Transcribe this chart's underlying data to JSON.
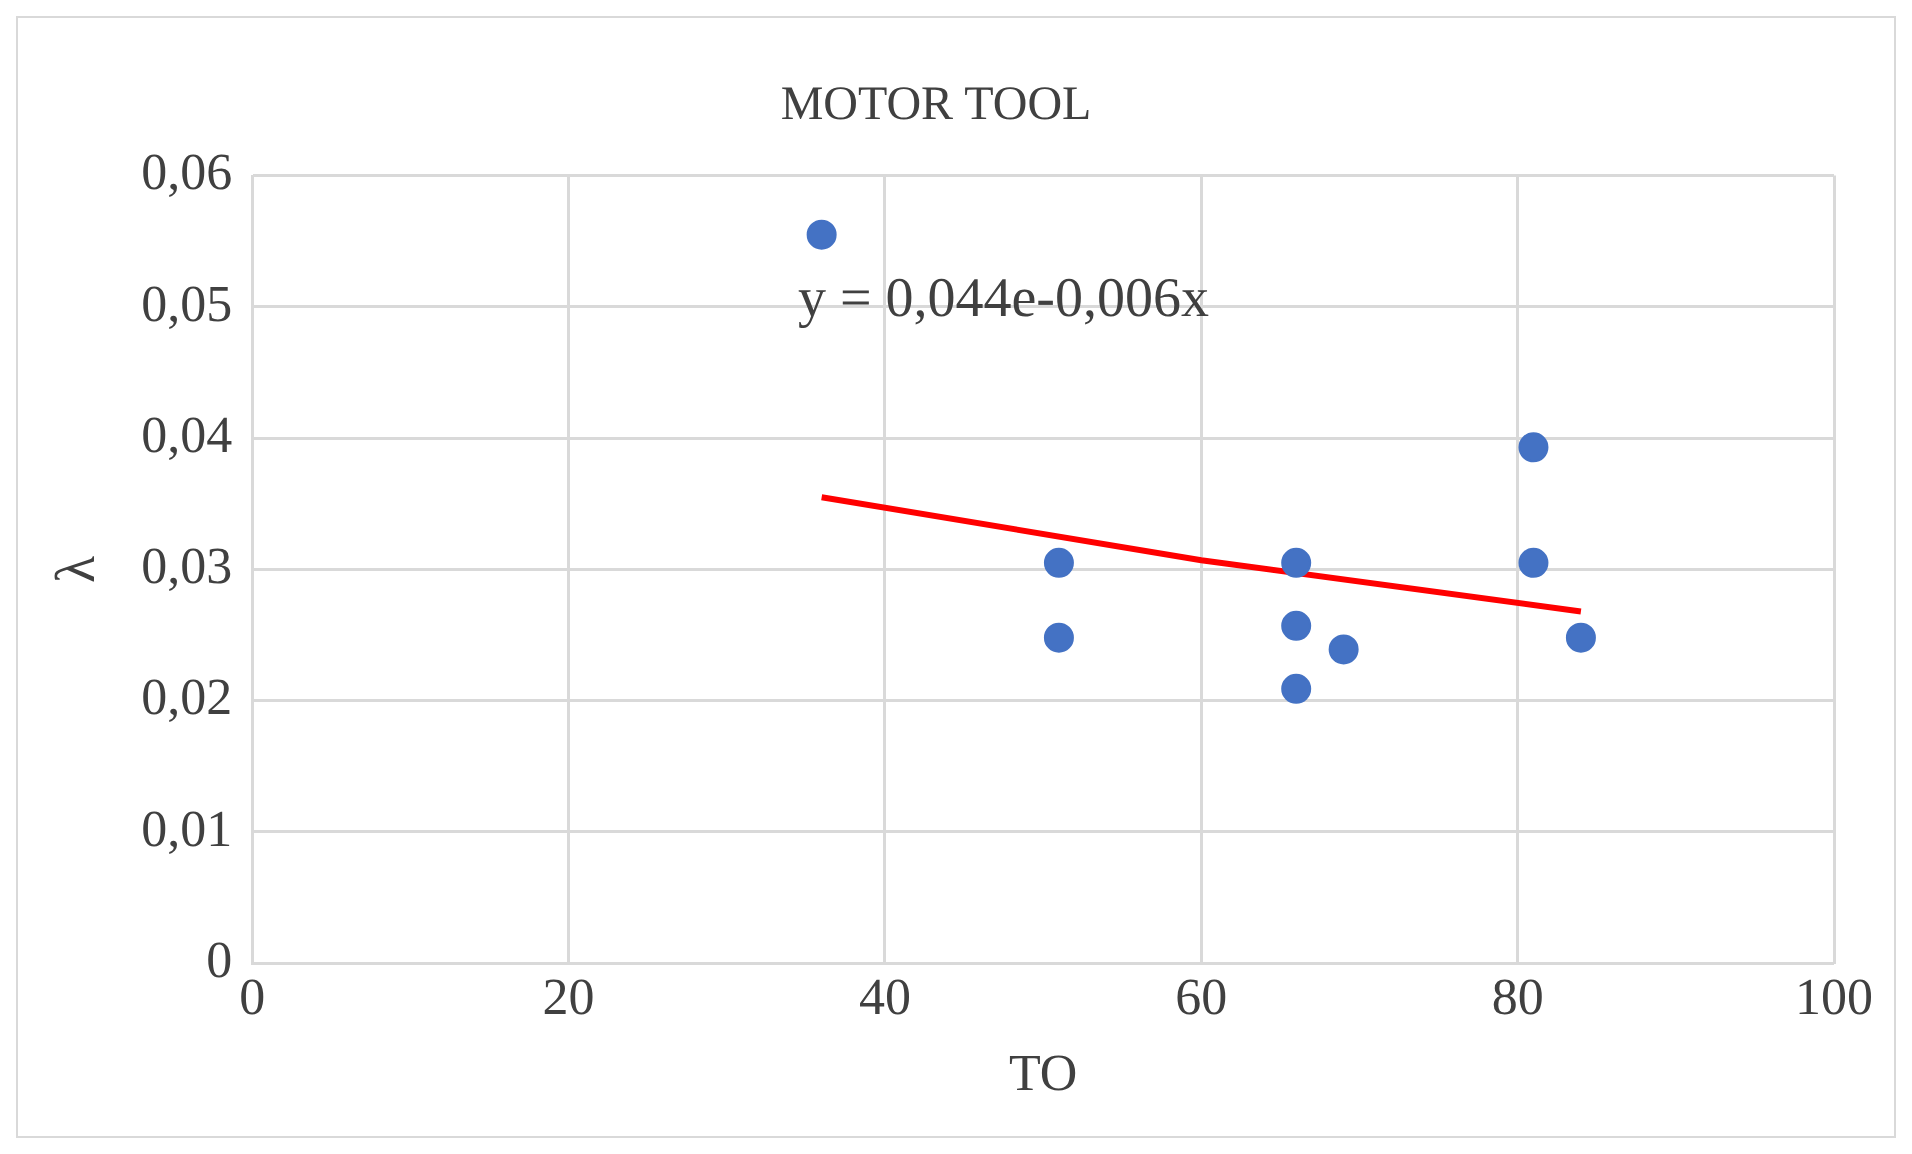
{
  "chart_data": {
    "type": "scatter",
    "title": "MOTOR TOOL",
    "xlabel": "TO",
    "ylabel": "λ",
    "annotations": [
      "y = 0,044e-0,006x"
    ],
    "series": [
      {
        "marker": "circle",
        "color": "#4472c4",
        "x": [
          36,
          51,
          51,
          66,
          66,
          66,
          69,
          81,
          81,
          84
        ],
        "values": [
          0.0555,
          0.0305,
          0.0248,
          0.0305,
          0.0257,
          0.0209,
          0.0239,
          0.0393,
          0.0305,
          0.0248
        ]
      },
      {
        "type": "line",
        "marker": "none",
        "color": "#ff0000",
        "x": [
          36,
          60,
          84
        ],
        "values": [
          0.0355,
          0.0307,
          0.0268
        ]
      }
    ],
    "xlim": [
      0,
      100
    ],
    "xticks": [
      0,
      20,
      40,
      60,
      80,
      100
    ],
    "ylim": [
      0,
      0.06
    ],
    "yticks": [
      0,
      {
        "value": 0.01,
        "label": "0,01"
      },
      {
        "value": 0.02,
        "label": "0,02"
      },
      {
        "value": 0.03,
        "label": "0,03"
      },
      {
        "value": 0.04,
        "label": "0,04"
      },
      {
        "value": 0.05,
        "label": "0,05"
      },
      {
        "value": 0.06,
        "label": "0,06"
      }
    ],
    "grid": true,
    "legend": false
  }
}
